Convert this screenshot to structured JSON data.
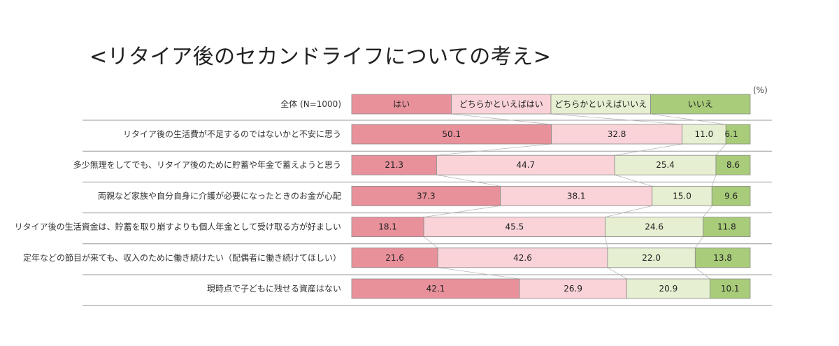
{
  "title": "<リタイア後のセカンドライフについての考え>",
  "chart_data": {
    "type": "bar",
    "orientation": "horizontal-stacked-100",
    "unit_label": "(%)",
    "legend_row_label": "全体 (N=1000)",
    "series": [
      {
        "name": "はい",
        "color": "#e8919b"
      },
      {
        "name": "どちらかといえばはい",
        "color": "#f9d3d8"
      },
      {
        "name": "どちらかといえばいいえ",
        "color": "#e6efd1"
      },
      {
        "name": "いいえ",
        "color": "#a9cc7a"
      }
    ],
    "categories": [
      "リタイア後の生活費が不足するのではないかと不安に思う",
      "多少無理をしてでも、リタイア後のために貯蓄や年金で蓄えようと思う",
      "両親など家族や自分自身に介護が必要になったときのお金が心配",
      "リタイア後の生活資金は、貯蓄を取り崩すよりも個人年金として受け取る方が好ましい",
      "定年などの節目が来ても、収入のために働き続けたい（配偶者に働き続けてほしい）",
      "現時点で子どもに残せる資産はない"
    ],
    "values": [
      [
        50.1,
        32.8,
        11.0,
        6.1
      ],
      [
        21.3,
        44.7,
        25.4,
        8.6
      ],
      [
        37.3,
        38.1,
        15.0,
        9.6
      ],
      [
        18.1,
        45.5,
        24.6,
        11.8
      ],
      [
        21.6,
        42.6,
        22.0,
        13.8
      ],
      [
        42.1,
        26.9,
        20.9,
        10.1
      ]
    ],
    "value_labels": [
      [
        "50.1",
        "32.8",
        "11.0",
        "6.1"
      ],
      [
        "21.3",
        "44.7",
        "25.4",
        "8.6"
      ],
      [
        "37.3",
        "38.1",
        "15.0",
        "9.6"
      ],
      [
        "18.1",
        "45.5",
        "24.6",
        "11.8"
      ],
      [
        "21.6",
        "42.6",
        "22.0",
        "13.8"
      ],
      [
        "42.1",
        "26.9",
        "20.9",
        "10.1"
      ]
    ],
    "xlim": [
      0,
      100
    ],
    "legend_position": "top",
    "grid": false
  }
}
